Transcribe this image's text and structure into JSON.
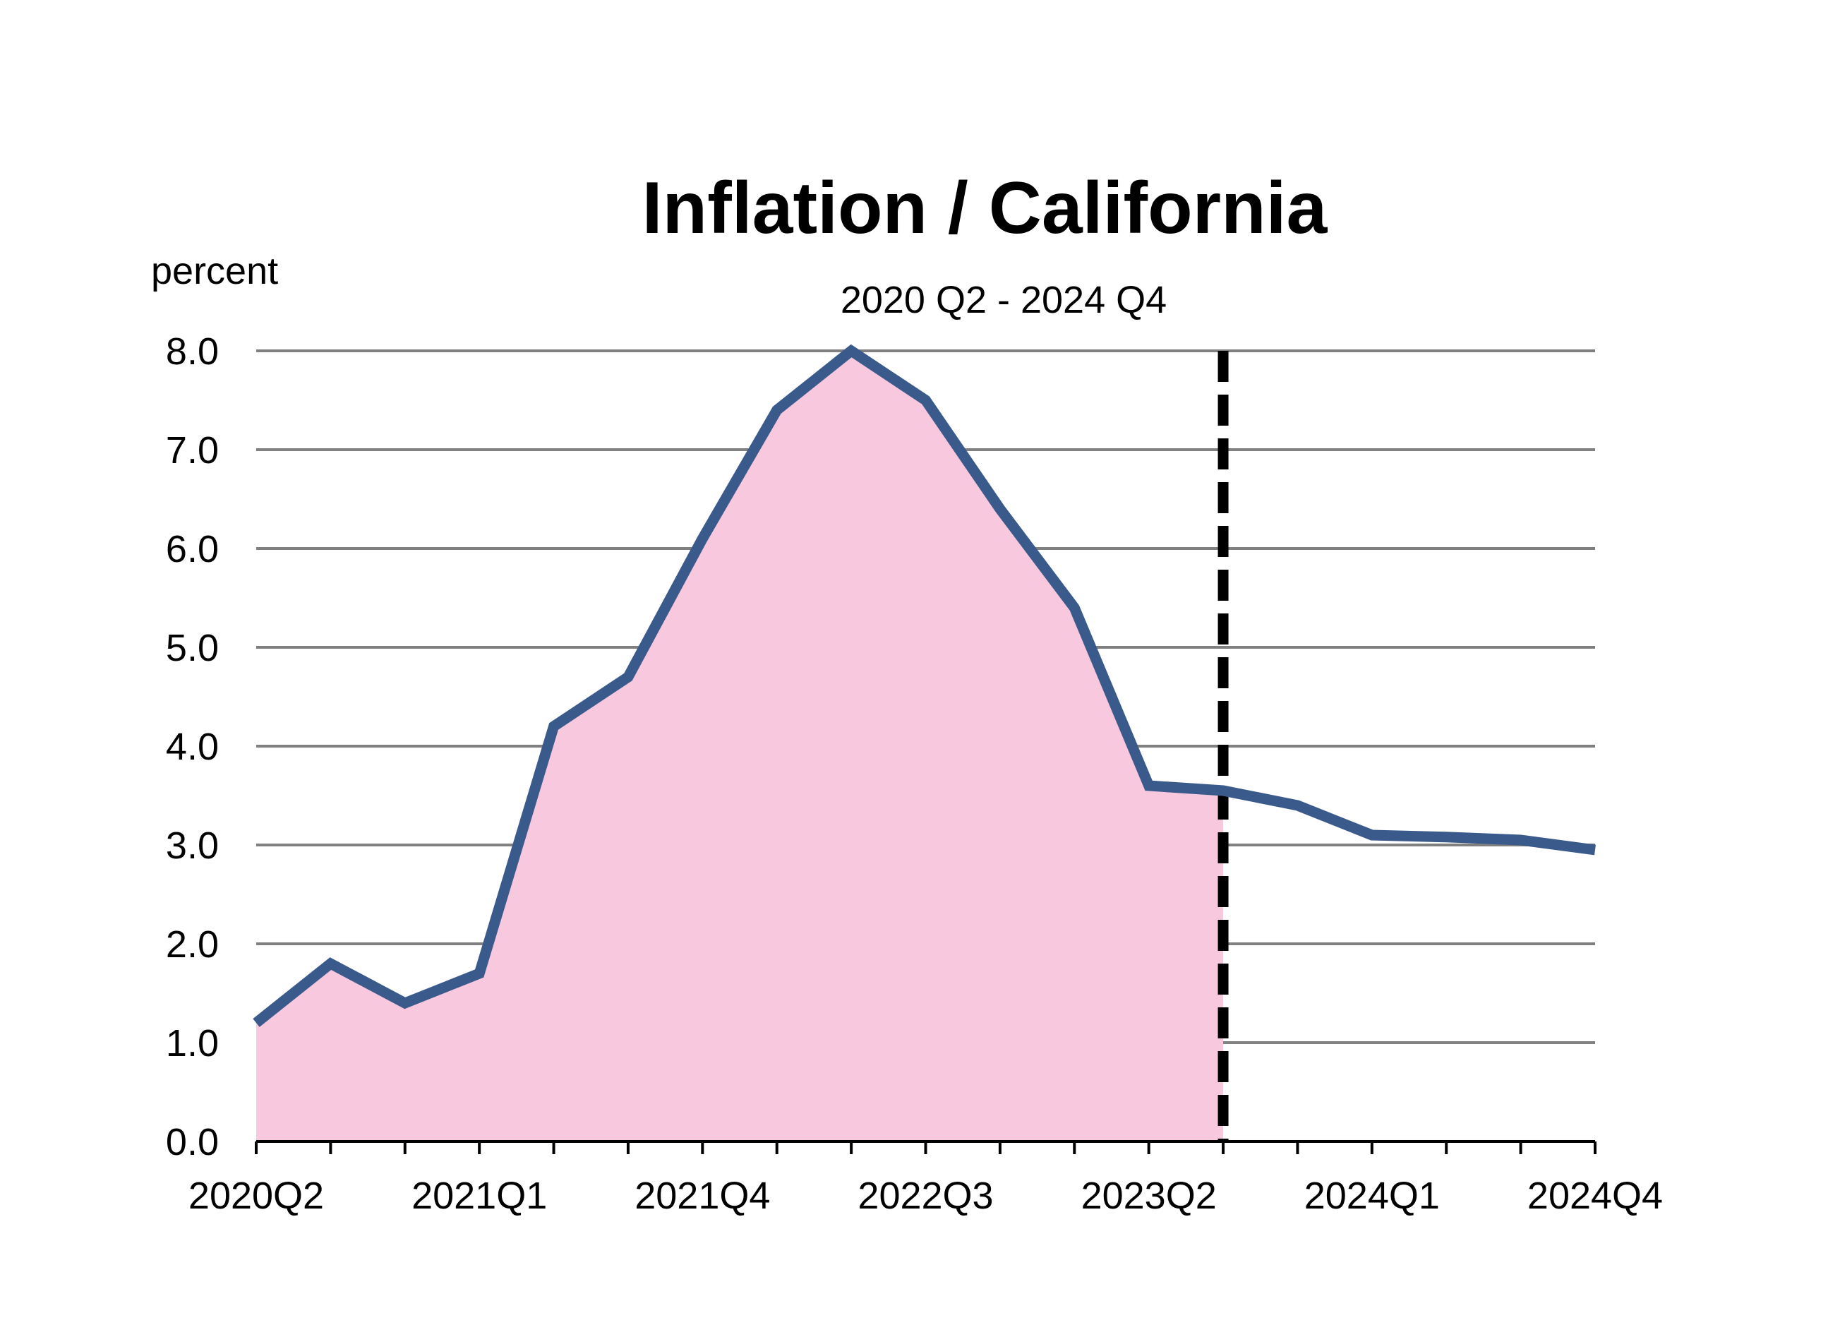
{
  "chart_data": {
    "type": "line",
    "title": "Inflation / California",
    "subtitle": "2020 Q2 - 2024 Q4",
    "ylabel": "percent",
    "xlabel": "",
    "ylim": [
      0,
      8
    ],
    "ytick_labels": [
      "0.0",
      "1.0",
      "2.0",
      "3.0",
      "4.0",
      "5.0",
      "6.0",
      "7.0",
      "8.0"
    ],
    "categories": [
      "2020Q2",
      "2020Q3",
      "2020Q4",
      "2021Q1",
      "2021Q2",
      "2021Q3",
      "2021Q4",
      "2022Q1",
      "2022Q2",
      "2022Q3",
      "2022Q4",
      "2023Q1",
      "2023Q2",
      "2023Q3",
      "2023Q4",
      "2024Q1",
      "2024Q2",
      "2024Q3",
      "2024Q4"
    ],
    "xtick_labels": [
      "2020Q2",
      "2021Q1",
      "2021Q4",
      "2022Q3",
      "2023Q2",
      "2024Q1",
      "2024Q4"
    ],
    "series": [
      {
        "values": [
          1.2,
          1.8,
          1.4,
          1.7,
          4.2,
          4.7,
          6.1,
          7.4,
          8.0,
          7.5,
          6.4,
          5.4,
          3.6,
          3.55,
          3.4,
          3.1,
          3.08,
          3.05,
          2.95
        ]
      }
    ],
    "shaded_area_until_index": 13,
    "vertical_marker_at_index": 13,
    "grid": true,
    "colors": {
      "line": "#3b5a8c",
      "fill": "#f8c8df",
      "grid": "#808080",
      "marker": "#000000",
      "axis": "#000000"
    }
  }
}
